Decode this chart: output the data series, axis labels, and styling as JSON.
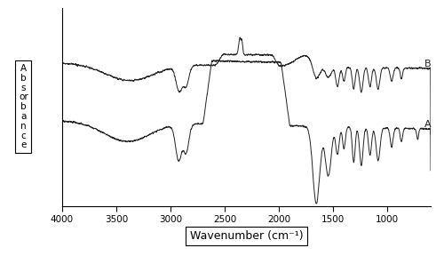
{
  "xlabel": "Wavenumber (cm⁻¹)",
  "ylabel_text": "A\nb\ns\nor\nb\na\nn\nc\ne",
  "xlim": [
    4000,
    600
  ],
  "background_color": "#f5f5f5",
  "line_color": "#222222",
  "label_A": "A",
  "label_B": "B",
  "xticks": [
    4000,
    3500,
    3000,
    2500,
    2000,
    1500,
    1000
  ],
  "figsize": [
    5.0,
    2.97
  ],
  "dpi": 100
}
